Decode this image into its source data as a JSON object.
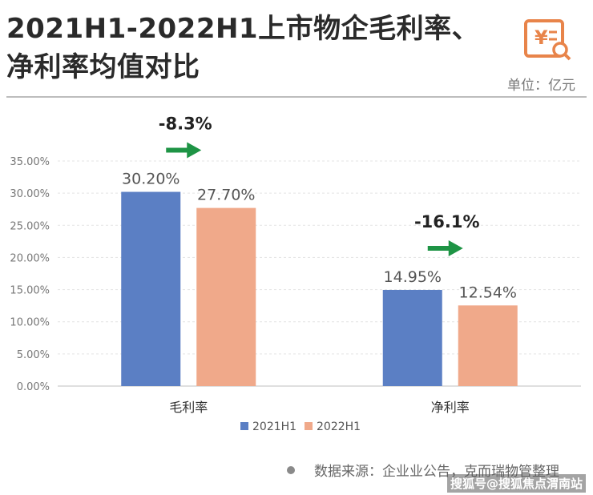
{
  "header": {
    "title": "2021H1-2022H1上市物企毛利率、净利率均值对比",
    "unit": "单位：亿元"
  },
  "logo": {
    "icon": "yen-report-search-icon",
    "color": "#e8844a"
  },
  "chart_data": {
    "type": "bar",
    "categories": [
      "毛利率",
      "净利率"
    ],
    "series": [
      {
        "name": "2021H1",
        "values": [
          30.2,
          14.95
        ],
        "labels": [
          "30.20%",
          "14.95%"
        ],
        "color": "#5b7fc4"
      },
      {
        "name": "2022H1",
        "values": [
          27.7,
          12.54
        ],
        "labels": [
          "27.70%",
          "12.54%"
        ],
        "color": "#f0a98a"
      }
    ],
    "ylim": [
      0,
      35
    ],
    "yticks": [
      0,
      5,
      10,
      15,
      20,
      25,
      30,
      35
    ],
    "ytick_labels": [
      "0.00%",
      "5.00%",
      "10.00%",
      "15.00%",
      "20.00%",
      "25.00%",
      "30.00%",
      "35.00%"
    ],
    "grid": true,
    "legend": "bottom-center",
    "annotations": [
      {
        "category": "毛利率",
        "text": "-8.3%",
        "arrow": "right",
        "arrow_color": "#1e9445"
      },
      {
        "category": "净利率",
        "text": "-16.1%",
        "arrow": "right",
        "arrow_color": "#1e9445"
      }
    ]
  },
  "footer": {
    "source": "数据来源：企业业公告，克而瑞物管整理",
    "watermark": "搜狐号@搜狐焦点渭南站"
  }
}
